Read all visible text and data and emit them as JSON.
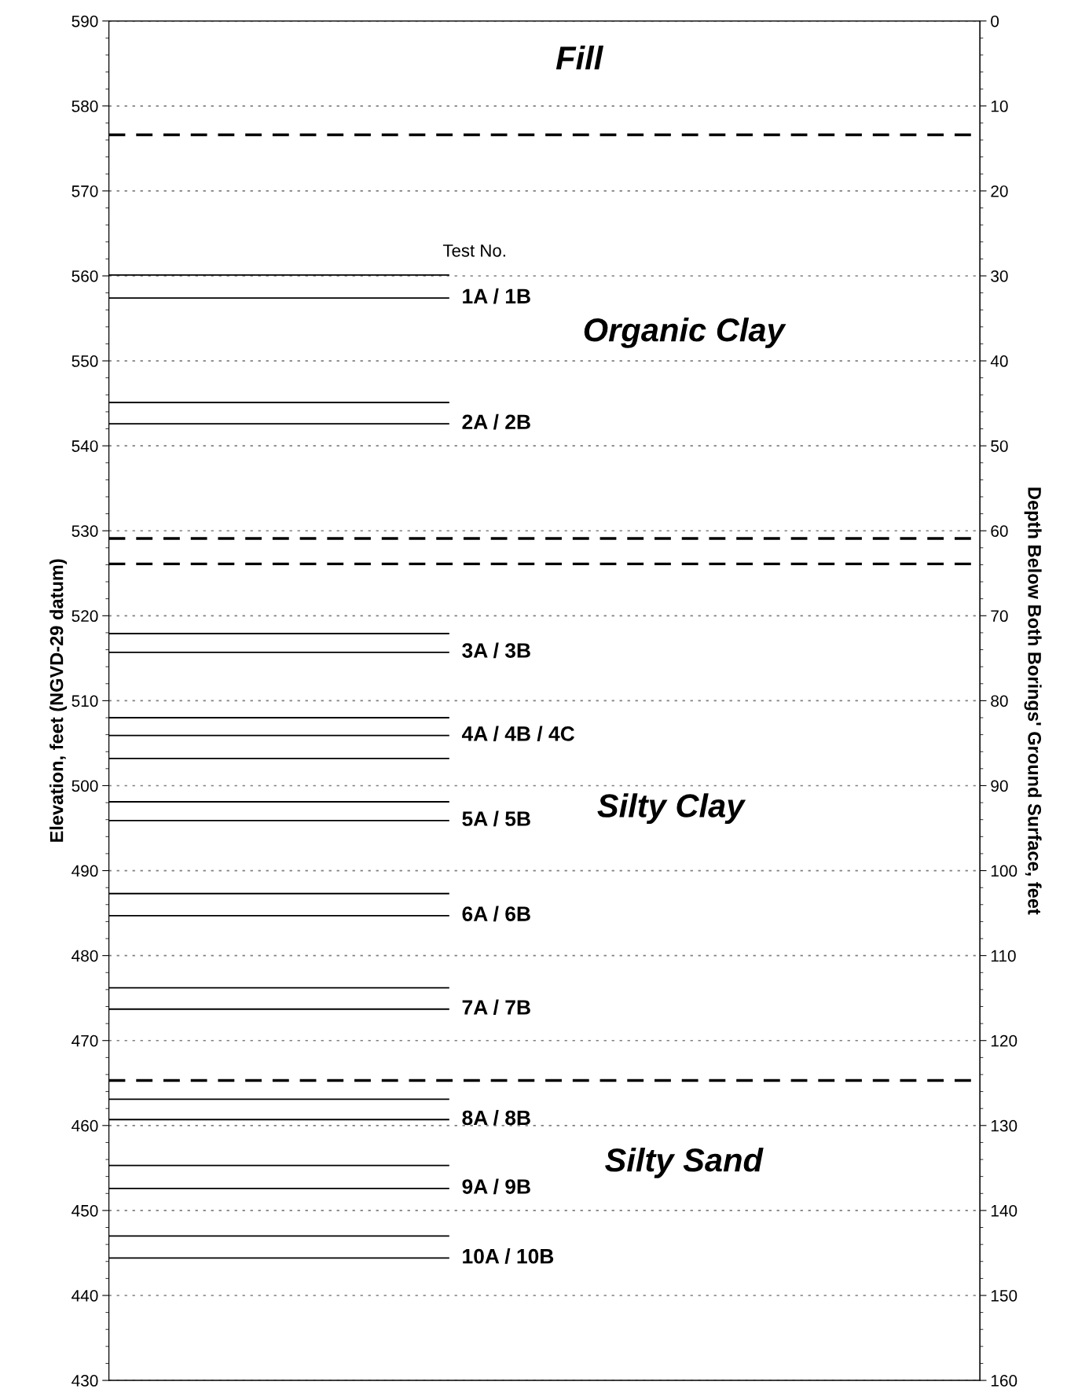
{
  "chart_data": {
    "type": "line",
    "ylabel": "Elevation, feet (NGVD-29 datum)",
    "y2label": "Depth Below Both Borings' Ground Surface, feet",
    "ylim": [
      430,
      590
    ],
    "yticks": [
      430,
      440,
      450,
      460,
      470,
      480,
      490,
      500,
      510,
      520,
      530,
      540,
      550,
      560,
      570,
      580,
      590
    ],
    "y2lim": [
      160,
      0
    ],
    "y2ticks": [
      0,
      10,
      20,
      30,
      40,
      50,
      60,
      70,
      80,
      90,
      100,
      110,
      120,
      130,
      140,
      150,
      160
    ],
    "grid": "y",
    "categories": [
      null
    ],
    "ref_lines": [
      {
        "axis": "y",
        "value": 576.6,
        "line_style": "dashed"
      },
      {
        "axis": "y",
        "value": 529.1,
        "line_style": "dashed"
      },
      {
        "axis": "y",
        "value": 526.1,
        "line_style": "dashed"
      },
      {
        "axis": "y",
        "value": 465.3,
        "line_style": "dashed"
      },
      {
        "axis": "y",
        "value": 560.1,
        "line_style": "solid"
      },
      {
        "axis": "y",
        "value": 557.4,
        "line_style": "solid",
        "label": "1A / 1B"
      },
      {
        "axis": "y",
        "value": 545.1,
        "line_style": "solid"
      },
      {
        "axis": "y",
        "value": 542.6,
        "line_style": "solid",
        "label": "2A / 2B"
      },
      {
        "axis": "y",
        "value": 517.9,
        "line_style": "solid"
      },
      {
        "axis": "y",
        "value": 515.7,
        "line_style": "solid",
        "label": "3A / 3B"
      },
      {
        "axis": "y",
        "value": 508.0,
        "line_style": "solid"
      },
      {
        "axis": "y",
        "value": 505.9,
        "line_style": "solid",
        "label": "4A / 4B / 4C"
      },
      {
        "axis": "y",
        "value": 503.2,
        "line_style": "solid"
      },
      {
        "axis": "y",
        "value": 498.1,
        "line_style": "solid"
      },
      {
        "axis": "y",
        "value": 495.9,
        "line_style": "solid",
        "label": "5A / 5B"
      },
      {
        "axis": "y",
        "value": 487.3,
        "line_style": "solid"
      },
      {
        "axis": "y",
        "value": 484.7,
        "line_style": "solid",
        "label": "6A / 6B"
      },
      {
        "axis": "y",
        "value": 476.2,
        "line_style": "solid"
      },
      {
        "axis": "y",
        "value": 473.7,
        "line_style": "solid",
        "label": "7A / 7B"
      },
      {
        "axis": "y",
        "value": 463.1,
        "line_style": "solid"
      },
      {
        "axis": "y",
        "value": 460.7,
        "line_style": "solid",
        "label": "8A / 8B"
      },
      {
        "axis": "y",
        "value": 455.3,
        "line_style": "solid"
      },
      {
        "axis": "y",
        "value": 452.6,
        "line_style": "solid",
        "label": "9A / 9B"
      },
      {
        "axis": "y",
        "value": 447.0,
        "line_style": "solid"
      },
      {
        "axis": "y",
        "value": 444.4,
        "line_style": "solid",
        "label": "10A / 10B"
      }
    ],
    "annotations": [
      "Test No.",
      "Fill",
      "Organic Clay",
      "Silty Clay",
      "Silty Sand"
    ]
  }
}
